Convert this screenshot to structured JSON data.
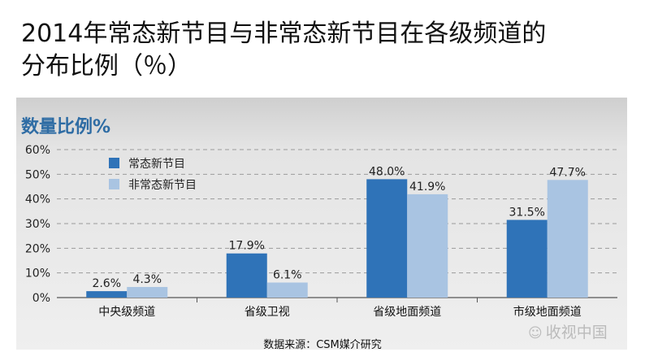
{
  "header": {
    "title_line1": "2014年常态新节目与非常态新节目在各级频道的",
    "title_line2": "分布比例（％）"
  },
  "panel": {
    "title": "数量比例%"
  },
  "source": "数据来源：CSM媒介研究",
  "watermark": {
    "icon": "wechat-icon",
    "text": "收视中国"
  },
  "chart_data": {
    "type": "bar",
    "categories": [
      "中央级频道",
      "省级卫视",
      "省级地面频道",
      "市级地面频道"
    ],
    "series": [
      {
        "name": "常态新节目",
        "color": "#2f73b8",
        "values": [
          2.6,
          17.9,
          48.0,
          31.5
        ],
        "labels": [
          "2.6%",
          "17.9%",
          "48.0%",
          "31.5%"
        ]
      },
      {
        "name": "非常态新节目",
        "color": "#a9c4e2",
        "values": [
          4.3,
          6.1,
          41.9,
          47.7
        ],
        "labels": [
          "4.3%",
          "6.1%",
          "41.9%",
          "47.7%"
        ]
      }
    ],
    "ylim": [
      0,
      60
    ],
    "yticks": [
      "0%",
      "10%",
      "20%",
      "30%",
      "40%",
      "50%",
      "60%"
    ],
    "grid": true,
    "legend_position": "top-left"
  }
}
